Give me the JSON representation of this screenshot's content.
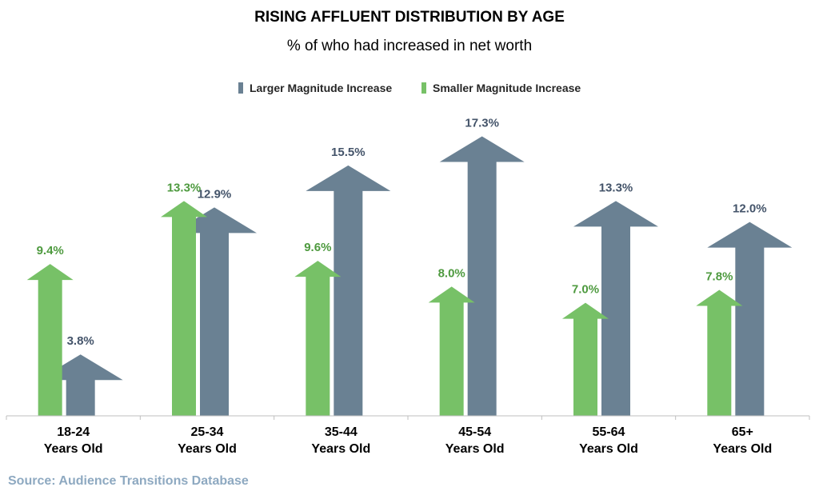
{
  "chart_data": {
    "type": "bar",
    "title": "RISING AFFLUENT DISTRIBUTION BY AGE",
    "subtitle": "% of who had increased in net worth",
    "categories": [
      [
        "18-24",
        "Years Old"
      ],
      [
        "25-34",
        "Years Old"
      ],
      [
        "35-44",
        "Years Old"
      ],
      [
        "45-54",
        "Years Old"
      ],
      [
        "55-64",
        "Years Old"
      ],
      [
        "65+",
        "Years Old"
      ]
    ],
    "series": [
      {
        "name": "Larger Magnitude Increase",
        "values": [
          3.8,
          12.9,
          15.5,
          17.3,
          13.3,
          12.0
        ],
        "labels": [
          "3.8%",
          "12.9%",
          "15.5%",
          "17.3%",
          "13.3%",
          "12.0%"
        ],
        "color": "#6a8193",
        "label_color": "#44546a"
      },
      {
        "name": "Smaller Magnitude Increase",
        "values": [
          9.4,
          13.3,
          9.6,
          8.0,
          7.0,
          7.8
        ],
        "labels": [
          "9.4%",
          "13.3%",
          "9.6%",
          "8.0%",
          "7.0%",
          "7.8%"
        ],
        "color": "#77c167",
        "label_color": "#4e9a3f"
      }
    ],
    "ylim": [
      0,
      20
    ],
    "marker": "arrow",
    "legend_position": "top",
    "grid": false
  },
  "source": {
    "text": "Source: Audience Transitions Database",
    "color": "#8ea9c1"
  }
}
